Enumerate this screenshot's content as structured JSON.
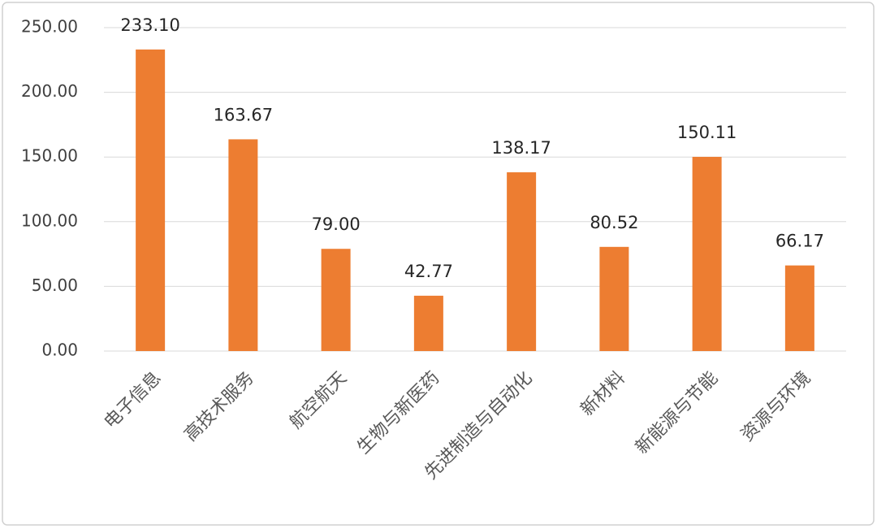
{
  "chart_data": {
    "type": "bar",
    "categories": [
      "电子信息",
      "高技术服务",
      "航空航天",
      "生物与新医药",
      "先进制造与自动化",
      "新材料",
      "新能源与节能",
      "资源与环境"
    ],
    "values": [
      233.1,
      163.67,
      79.0,
      42.77,
      138.17,
      80.52,
      150.11,
      66.17
    ],
    "value_labels": [
      "233.10",
      "163.67",
      "79.00",
      "42.77",
      "138.17",
      "80.52",
      "150.11",
      "66.17"
    ],
    "color": "#ed7d31",
    "ylim": [
      0,
      250
    ],
    "yticks": [
      {
        "value": 0,
        "label": "0.00"
      },
      {
        "value": 50,
        "label": "50.00"
      },
      {
        "value": 100,
        "label": "100.00"
      },
      {
        "value": 150,
        "label": "150.00"
      },
      {
        "value": 200,
        "label": "200.00"
      },
      {
        "value": 250,
        "label": "250.00"
      }
    ],
    "grid": true
  }
}
